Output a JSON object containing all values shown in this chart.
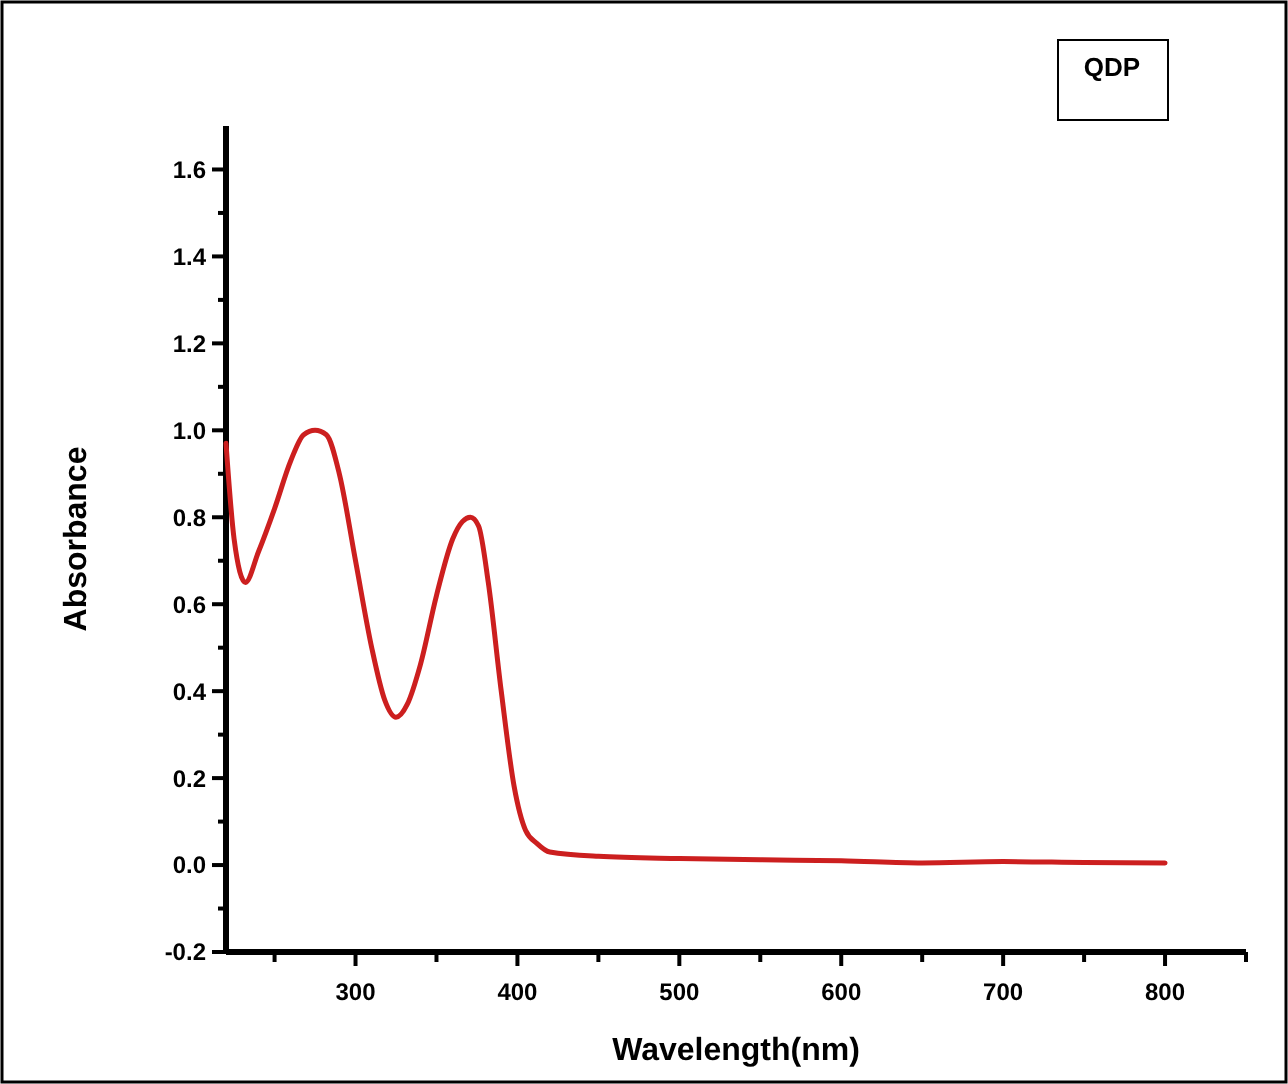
{
  "chart_data": {
    "type": "line",
    "xlabel": "Wavelength(nm)",
    "ylabel": "Absorbance",
    "annotations": [
      "QDP"
    ],
    "xlim": [
      220,
      850
    ],
    "xticks": [
      {
        "value": 250,
        "label": null
      },
      300,
      {
        "value": 350,
        "label": null
      },
      400,
      {
        "value": 450,
        "label": null
      },
      500,
      {
        "value": 550,
        "label": null
      },
      600,
      {
        "value": 650,
        "label": null
      },
      700,
      {
        "value": 750,
        "label": null
      },
      800,
      {
        "value": 850,
        "label": null
      }
    ],
    "ylim": [
      -0.2,
      1.7
    ],
    "yticks": [
      -0.2,
      {
        "value": -0.1,
        "label": null
      },
      {
        "value": 0,
        "label": "0.0"
      },
      {
        "value": 0.1,
        "label": null
      },
      0.2,
      {
        "value": 0.3,
        "label": null
      },
      0.4,
      {
        "value": 0.5,
        "label": null
      },
      0.6,
      {
        "value": 0.7,
        "label": null
      },
      0.8,
      {
        "value": 0.9,
        "label": null
      },
      {
        "value": 1,
        "label": "1.0"
      },
      {
        "value": 1.1,
        "label": null
      },
      1.2,
      {
        "value": 1.3,
        "label": null
      },
      1.4,
      {
        "value": 1.5,
        "label": null
      },
      1.6
    ],
    "grid": false,
    "marker": "none",
    "line_style": "solid",
    "series": [
      {
        "color": "#cc1f1f",
        "x": [
          220,
          225,
          232,
          240,
          250,
          260,
          268,
          275,
          282,
          290,
          300,
          310,
          318,
          325,
          332,
          340,
          350,
          360,
          366,
          371,
          376,
          382,
          390,
          398,
          405,
          412,
          420,
          450,
          500,
          550,
          600,
          650,
          700,
          750,
          800
        ],
        "values": [
          0.97,
          0.75,
          0.65,
          0.72,
          0.82,
          0.93,
          0.99,
          1.0,
          0.99,
          0.9,
          0.7,
          0.5,
          0.38,
          0.34,
          0.37,
          0.46,
          0.62,
          0.75,
          0.79,
          0.8,
          0.78,
          0.65,
          0.4,
          0.18,
          0.08,
          0.05,
          0.03,
          0.02,
          0.015,
          0.012,
          0.01,
          0.005,
          0.008,
          0.006,
          0.005
        ]
      }
    ]
  }
}
